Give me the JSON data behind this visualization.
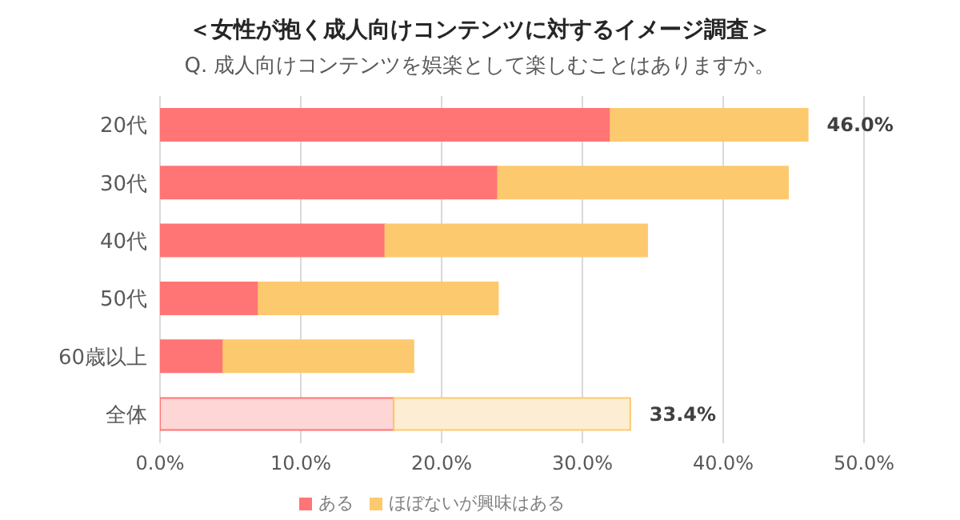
{
  "chart_data": {
    "type": "bar",
    "orientation": "horizontal",
    "stacked": true,
    "title": "＜女性が抱く成人向けコンテンツに対するイメージ調査＞",
    "subtitle": "Q. 成人向けコンテンツを娯楽として楽しむことはありますか。",
    "categories": [
      "20代",
      "30代",
      "40代",
      "50代",
      "60歳以上",
      "全体"
    ],
    "series": [
      {
        "name": "ある",
        "color": "#ff7575",
        "colors": [
          "#ff7575",
          "#ff7575",
          "#ff7575",
          "#ff7575",
          "#ff7575",
          "#ffd6d6"
        ],
        "values": [
          32.0,
          24.0,
          16.0,
          7.0,
          4.5,
          16.6
        ]
      },
      {
        "name": "ほぼないが興味はある",
        "color": "#fdc96e",
        "colors": [
          "#fdc96e",
          "#fdc96e",
          "#fdc96e",
          "#fdc96e",
          "#fdc96e",
          "#fdedd2"
        ],
        "values": [
          14.0,
          20.6,
          18.6,
          17.0,
          13.5,
          16.8
        ]
      }
    ],
    "totals": [
      "46.0%",
      null,
      null,
      null,
      null,
      "33.4%"
    ],
    "xlim": [
      0,
      50
    ],
    "xticks": [
      {
        "value": 0,
        "label": "0.0%"
      },
      {
        "value": 10,
        "label": "10.0%"
      },
      {
        "value": 20,
        "label": "20.0%"
      },
      {
        "value": 30,
        "label": "30.0%"
      },
      {
        "value": 40,
        "label": "40.0%"
      },
      {
        "value": 50,
        "label": "50.0%"
      }
    ],
    "grid": "x",
    "legend": "bottom"
  }
}
